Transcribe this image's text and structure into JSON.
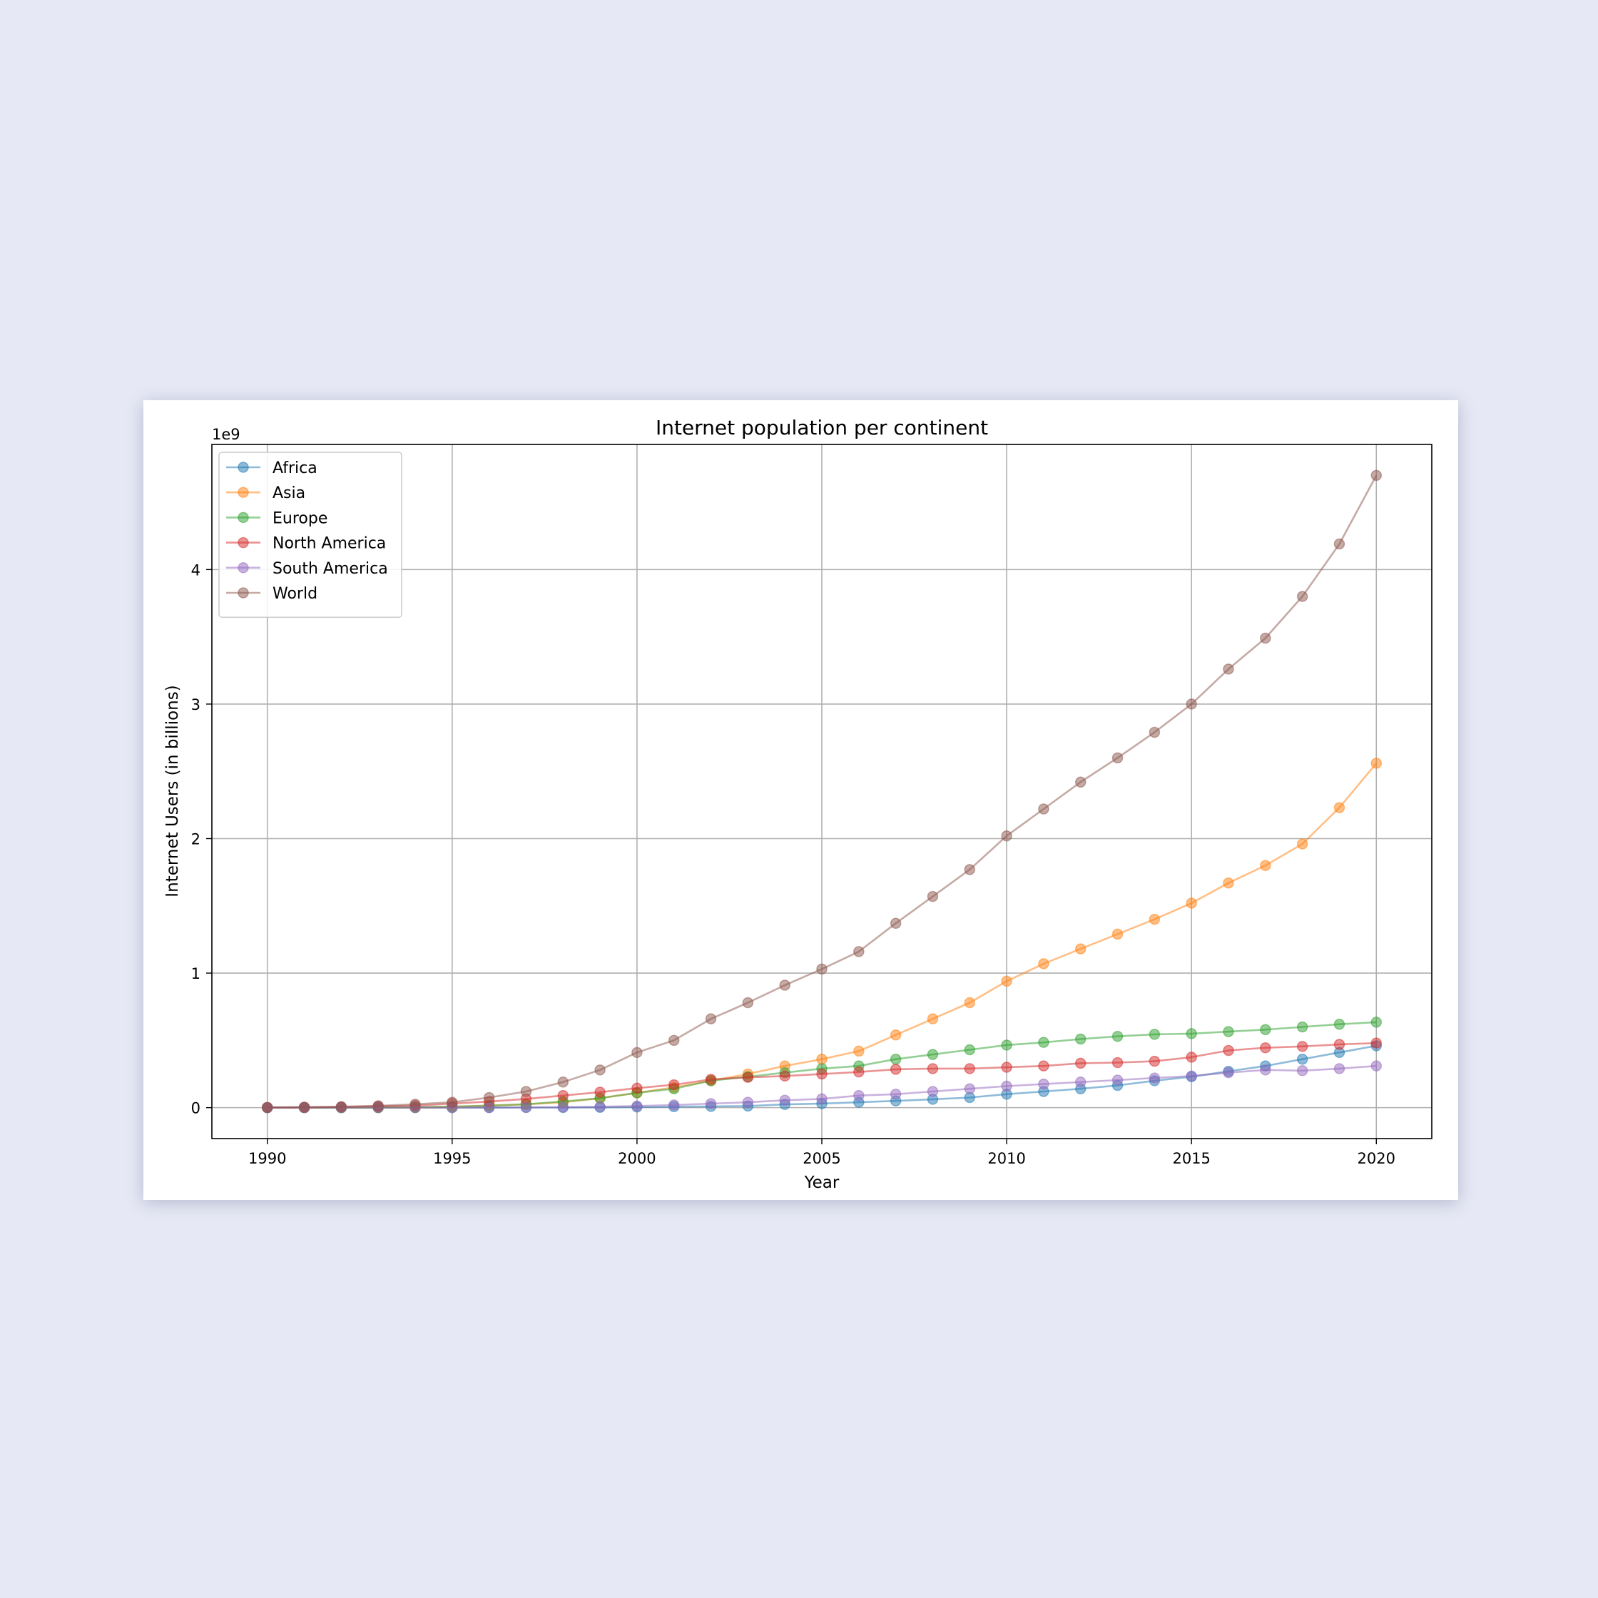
{
  "chart_data": {
    "type": "line",
    "title": "Internet population per continent",
    "xlabel": "Year",
    "ylabel": "Internet Users (in billions)",
    "y_offset_label": "1e9",
    "xlim": [
      1988.5,
      2021.5
    ],
    "ylim": [
      -230000000,
      4930000000
    ],
    "x_ticks": [
      1990,
      1995,
      2000,
      2005,
      2010,
      2015,
      2020
    ],
    "y_ticks": [
      0,
      1000000000,
      2000000000,
      3000000000,
      4000000000
    ],
    "y_tick_labels": [
      "0",
      "1",
      "2",
      "3",
      "4"
    ],
    "grid": true,
    "legend_position": "top-left",
    "marker": "circle",
    "x": [
      1990,
      1991,
      1992,
      1993,
      1994,
      1995,
      1996,
      1997,
      1998,
      1999,
      2000,
      2001,
      2002,
      2003,
      2004,
      2005,
      2006,
      2007,
      2008,
      2009,
      2010,
      2011,
      2012,
      2013,
      2014,
      2015,
      2016,
      2017,
      2018,
      2019,
      2020
    ],
    "series": [
      {
        "name": "Africa",
        "color": "#1f77b4",
        "values": [
          0,
          0,
          0,
          0,
          0,
          0,
          0,
          1000000,
          1000000,
          2000000,
          4500000,
          7000000,
          9000000,
          12000000,
          24000000,
          30000000,
          40000000,
          50000000,
          62000000,
          75000000,
          100000000,
          120000000,
          140000000,
          165000000,
          200000000,
          230000000,
          270000000,
          310000000,
          360000000,
          410000000,
          460000000
        ]
      },
      {
        "name": "Asia",
        "color": "#ff7f0e",
        "values": [
          0,
          0,
          0,
          0,
          1000000,
          5000000,
          15000000,
          25000000,
          40000000,
          70000000,
          110000000,
          150000000,
          200000000,
          250000000,
          310000000,
          360000000,
          420000000,
          540000000,
          660000000,
          780000000,
          940000000,
          1070000000,
          1180000000,
          1290000000,
          1400000000,
          1520000000,
          1670000000,
          1800000000,
          1960000000,
          2230000000,
          2560000000
        ]
      },
      {
        "name": "Europe",
        "color": "#2ca02c",
        "values": [
          0,
          0,
          0,
          1000000,
          3000000,
          8000000,
          15000000,
          25000000,
          45000000,
          70000000,
          110000000,
          140000000,
          200000000,
          230000000,
          260000000,
          290000000,
          310000000,
          360000000,
          395000000,
          430000000,
          465000000,
          485000000,
          510000000,
          530000000,
          545000000,
          550000000,
          565000000,
          580000000,
          600000000,
          620000000,
          635000000
        ]
      },
      {
        "name": "North America",
        "color": "#d62728",
        "values": [
          1000000,
          2000000,
          5000000,
          10000000,
          15000000,
          30000000,
          45000000,
          65000000,
          90000000,
          115000000,
          145000000,
          170000000,
          210000000,
          225000000,
          235000000,
          250000000,
          265000000,
          285000000,
          290000000,
          290000000,
          300000000,
          310000000,
          330000000,
          335000000,
          345000000,
          375000000,
          425000000,
          445000000,
          455000000,
          470000000,
          480000000
        ]
      },
      {
        "name": "South America",
        "color": "#9467bd",
        "values": [
          0,
          0,
          0,
          0,
          0,
          0,
          1000000,
          2000000,
          3000000,
          7000000,
          12000000,
          20000000,
          30000000,
          40000000,
          55000000,
          65000000,
          90000000,
          100000000,
          120000000,
          140000000,
          160000000,
          175000000,
          190000000,
          205000000,
          220000000,
          235000000,
          260000000,
          280000000,
          275000000,
          290000000,
          310000000
        ]
      },
      {
        "name": "World",
        "color": "#8c564b",
        "values": [
          2000000,
          4000000,
          7000000,
          14000000,
          25000000,
          40000000,
          75000000,
          120000000,
          190000000,
          280000000,
          410000000,
          500000000,
          660000000,
          780000000,
          910000000,
          1030000000,
          1160000000,
          1370000000,
          1570000000,
          1770000000,
          2020000000,
          2220000000,
          2420000000,
          2600000000,
          2790000000,
          3000000000,
          3260000000,
          3490000000,
          3800000000,
          4190000000,
          4700000000
        ]
      }
    ]
  }
}
